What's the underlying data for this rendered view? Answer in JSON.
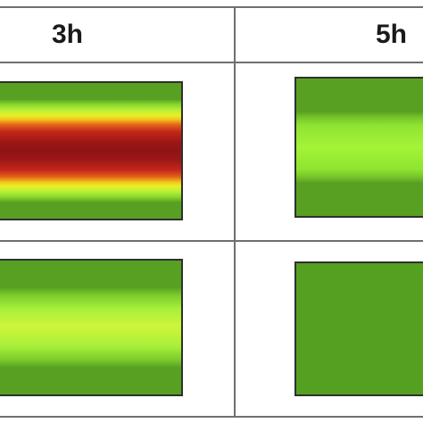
{
  "columns": [
    {
      "label": "3h"
    },
    {
      "label": "5h"
    }
  ],
  "colors": {
    "grid_line": "#6f6f6f",
    "cell_border": "#2f2f2f",
    "dark_green": "#57a022",
    "light_green": "#a4f437",
    "yellow": "#e8f024",
    "red": "#c3261a",
    "dark_red": "#8f1414"
  }
}
